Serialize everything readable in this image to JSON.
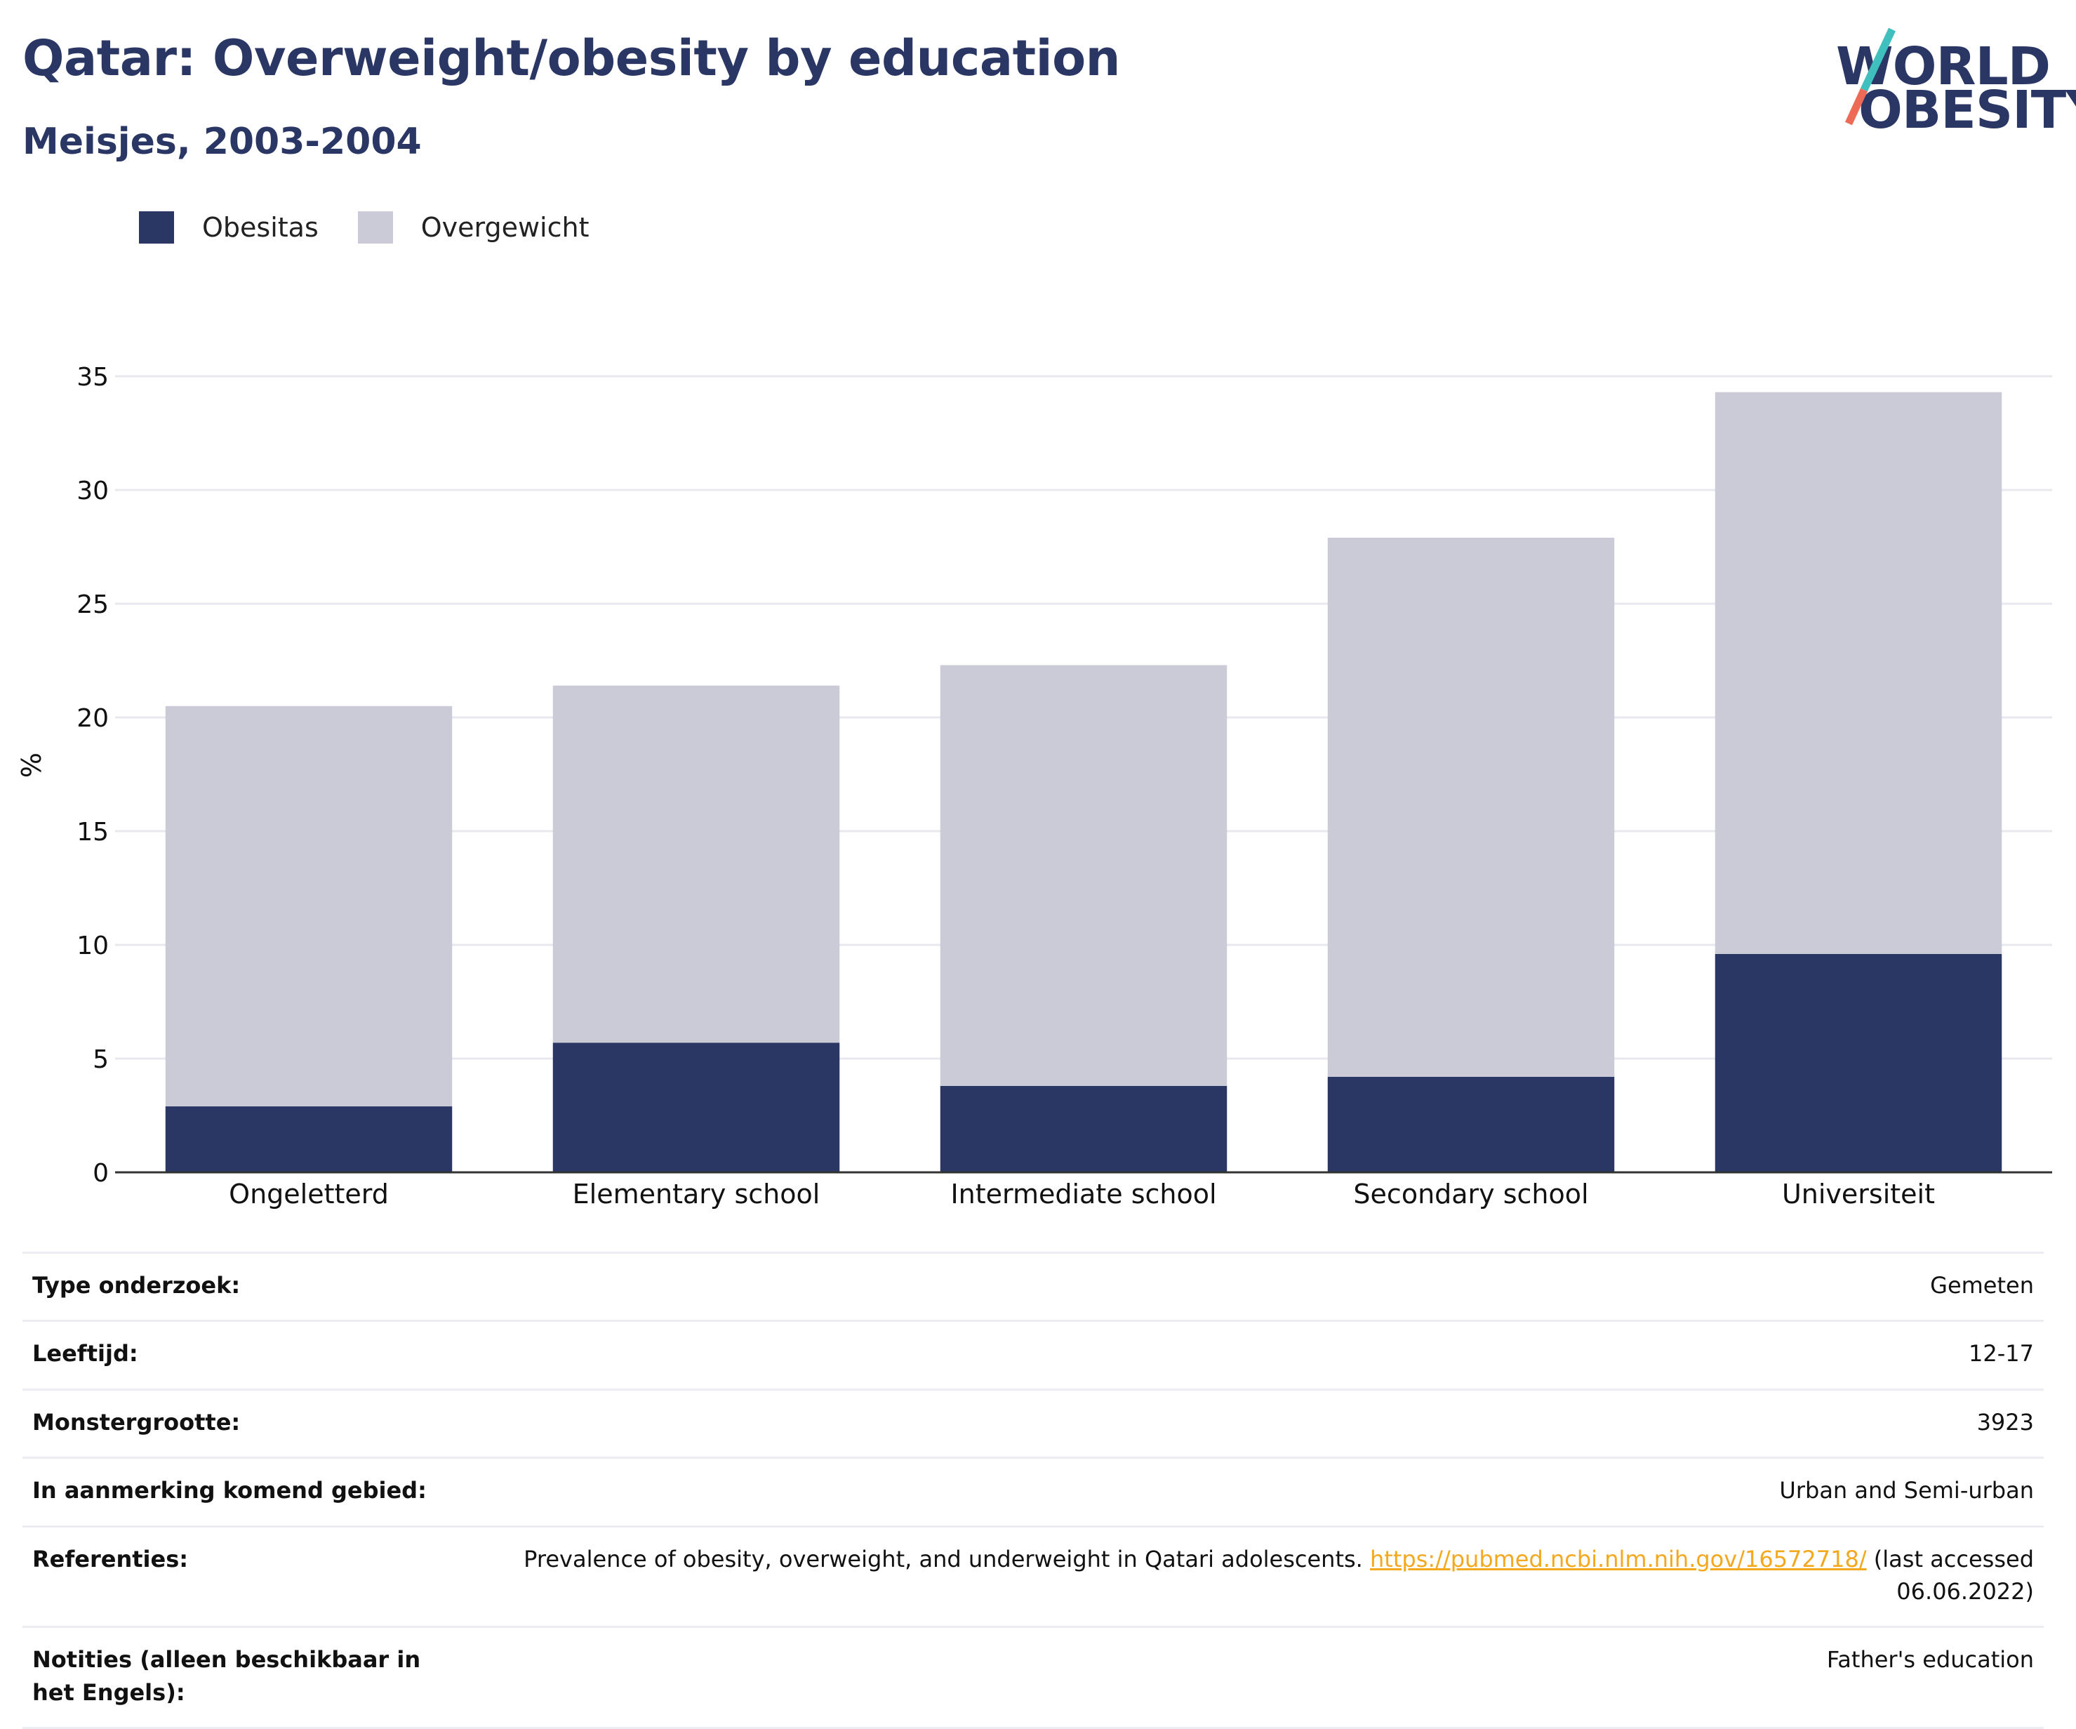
{
  "header": {
    "title": "Qatar: Overweight/obesity by education",
    "subtitle": "Meisjes, 2003-2004"
  },
  "logo": {
    "line1": "WORLD",
    "line2": "OBESITY",
    "colors": {
      "text": "#2a3764",
      "slash_top": "#3fbfbd",
      "slash_bottom": "#ec6a56"
    }
  },
  "legend": [
    {
      "label": "Obesitas",
      "color": "#2a3764"
    },
    {
      "label": "Overgewicht",
      "color": "#cacbd6"
    }
  ],
  "chart_data": {
    "type": "bar",
    "stacked": true,
    "title": "Qatar: Overweight/obesity by education",
    "subtitle": "Meisjes, 2003-2004",
    "ylabel": "%",
    "xlabel": "",
    "ylim": [
      0,
      35
    ],
    "yticks": [
      0,
      5,
      10,
      15,
      20,
      25,
      30,
      35
    ],
    "grid": true,
    "legend_position": "top-left",
    "categories": [
      "Ongeletterd",
      "Elementary school",
      "Intermediate school",
      "Secondary school",
      "Universiteit"
    ],
    "series": [
      {
        "name": "Obesitas",
        "color": "#2a3764",
        "values": [
          2.9,
          5.7,
          3.8,
          4.2,
          9.6
        ]
      },
      {
        "name": "Overgewicht",
        "color": "#cacbd6",
        "values": [
          17.6,
          15.7,
          18.5,
          23.7,
          24.7
        ]
      }
    ]
  },
  "info": [
    {
      "key": "Type onderzoek:",
      "value": "Gemeten"
    },
    {
      "key": "Leeftijd:",
      "value": "12-17"
    },
    {
      "key": "Monstergrootte:",
      "value": "3923"
    },
    {
      "key": "In aanmerking komend gebied:",
      "value": "Urban and Semi-urban"
    },
    {
      "key": "Referenties:",
      "value_before": "Prevalence of obesity, overweight, and underweight in Qatari adolescents. ",
      "link": "https://pubmed.ncbi.nlm.nih.gov/16572718/",
      "value_after": " (last accessed 06.06.2022)"
    },
    {
      "key": "Notities (alleen beschikbaar in het Engels):",
      "value": "Father's education"
    }
  ]
}
